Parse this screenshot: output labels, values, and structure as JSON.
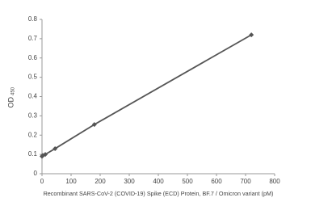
{
  "chart_data": {
    "type": "line",
    "x_label": "Recombinant SARS-CoV-2  (COVID-19) Spike (ECD) Protein, BF.7 / Omicron variant (pM)",
    "y_label": "OD",
    "y_label_sub": "450",
    "x": [
      0,
      2.8,
      11.25,
      45,
      180,
      720
    ],
    "series": [
      {
        "name": "OD",
        "color": "#555555",
        "values": [
          0.09,
          0.095,
          0.1,
          0.13,
          0.255,
          0.72
        ]
      }
    ],
    "xlim": [
      0,
      800
    ],
    "xticks": [
      0,
      100,
      200,
      300,
      400,
      500,
      600,
      700,
      800
    ],
    "ylim": [
      0,
      0.8
    ],
    "yticks": [
      0,
      0.1,
      0.2,
      0.3,
      0.4,
      0.5,
      0.6,
      0.7,
      0.8
    ],
    "grid": false
  }
}
